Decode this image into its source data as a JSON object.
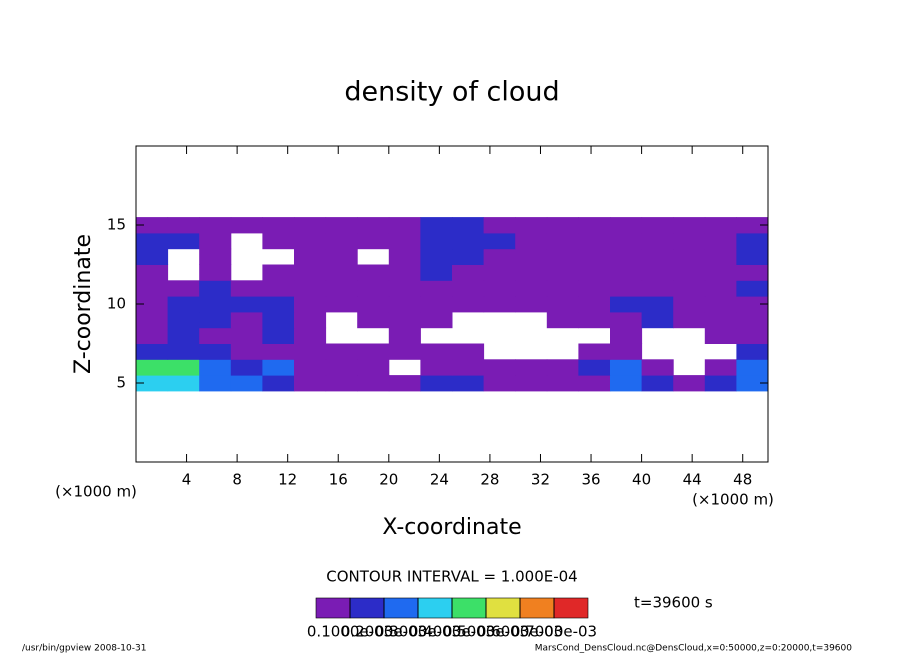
{
  "chart_data": {
    "type": "heatmap",
    "title": "density of cloud",
    "x_label": "X-coordinate",
    "y_label": "Z-coordinate",
    "x_unit": "(×1000 m)",
    "y_unit": "(×1000 m)",
    "xlim": [
      0,
      50
    ],
    "ylim": [
      0,
      20
    ],
    "xticks": [
      4,
      8,
      12,
      16,
      20,
      24,
      28,
      32,
      36,
      40,
      44,
      48
    ],
    "yticks": [
      5,
      10,
      15
    ],
    "x": [
      1.25,
      3.75,
      6.25,
      8.75,
      11.25,
      13.75,
      16.25,
      18.75,
      21.25,
      23.75,
      26.25,
      28.75,
      31.25,
      33.75,
      36.25,
      38.75,
      41.25,
      43.75,
      46.25,
      48.75
    ],
    "y": [
      5,
      6,
      7,
      8,
      9,
      10,
      11,
      12,
      13,
      14,
      15
    ],
    "values": [
      [
        0.00035,
        0.00035,
        0.00025,
        0.00025,
        0.00015,
        5e-05,
        5e-05,
        5e-05,
        5e-05,
        0.00015,
        0.00015,
        5e-05,
        5e-05,
        5e-05,
        5e-05,
        0.00025,
        0.00015,
        5e-05,
        0.00015,
        0.00025
      ],
      [
        0.00045,
        0.00045,
        0.00025,
        0.00015,
        0.00025,
        5e-05,
        5e-05,
        5e-05,
        null,
        5e-05,
        5e-05,
        5e-05,
        5e-05,
        5e-05,
        0.00015,
        0.00025,
        5e-05,
        null,
        5e-05,
        0.00025
      ],
      [
        0.00015,
        0.00015,
        0.00015,
        5e-05,
        5e-05,
        5e-05,
        5e-05,
        5e-05,
        5e-05,
        5e-05,
        5e-05,
        null,
        null,
        null,
        5e-05,
        5e-05,
        null,
        null,
        null,
        0.00015
      ],
      [
        5e-05,
        0.00015,
        5e-05,
        5e-05,
        0.00015,
        5e-05,
        null,
        null,
        5e-05,
        null,
        null,
        null,
        null,
        null,
        null,
        5e-05,
        null,
        null,
        5e-05,
        5e-05
      ],
      [
        5e-05,
        0.00015,
        0.00015,
        5e-05,
        0.00015,
        5e-05,
        null,
        5e-05,
        5e-05,
        5e-05,
        null,
        null,
        null,
        5e-05,
        5e-05,
        5e-05,
        0.00015,
        5e-05,
        5e-05,
        5e-05
      ],
      [
        5e-05,
        0.00015,
        0.00015,
        0.00015,
        0.00015,
        5e-05,
        5e-05,
        5e-05,
        5e-05,
        5e-05,
        5e-05,
        5e-05,
        5e-05,
        5e-05,
        5e-05,
        0.00015,
        0.00015,
        5e-05,
        5e-05,
        5e-05
      ],
      [
        5e-05,
        5e-05,
        0.00015,
        5e-05,
        5e-05,
        5e-05,
        5e-05,
        5e-05,
        5e-05,
        5e-05,
        5e-05,
        5e-05,
        5e-05,
        5e-05,
        5e-05,
        5e-05,
        5e-05,
        5e-05,
        5e-05,
        0.00015
      ],
      [
        5e-05,
        null,
        5e-05,
        null,
        5e-05,
        5e-05,
        5e-05,
        5e-05,
        5e-05,
        0.00015,
        5e-05,
        5e-05,
        5e-05,
        5e-05,
        5e-05,
        5e-05,
        5e-05,
        5e-05,
        5e-05,
        5e-05
      ],
      [
        0.00015,
        null,
        5e-05,
        null,
        null,
        5e-05,
        5e-05,
        null,
        5e-05,
        0.00015,
        0.00015,
        5e-05,
        5e-05,
        5e-05,
        5e-05,
        5e-05,
        5e-05,
        5e-05,
        5e-05,
        0.00015
      ],
      [
        0.00015,
        0.00015,
        5e-05,
        null,
        5e-05,
        5e-05,
        5e-05,
        5e-05,
        5e-05,
        0.00015,
        0.00015,
        0.00015,
        5e-05,
        5e-05,
        5e-05,
        5e-05,
        5e-05,
        5e-05,
        5e-05,
        0.00015
      ],
      [
        5e-05,
        5e-05,
        5e-05,
        5e-05,
        5e-05,
        5e-05,
        5e-05,
        5e-05,
        5e-05,
        0.00015,
        0.00015,
        5e-05,
        5e-05,
        5e-05,
        5e-05,
        5e-05,
        5e-05,
        5e-05,
        5e-05,
        5e-05
      ]
    ],
    "colorbar": {
      "lim": [
        0,
        0.0008
      ],
      "colors": [
        "#7a1cb4",
        "#2c2cc8",
        "#1f6af0",
        "#2ccff0",
        "#3ce068",
        "#e0e040",
        "#f08020",
        "#e02828"
      ],
      "ticks": [
        {
          "value": 0.0001,
          "label": "0.1000e-03"
        },
        {
          "value": 0.0002,
          "label": "0.2000e-03"
        },
        {
          "value": 0.0003,
          "label": "0.3000e-03"
        },
        {
          "value": 0.0004,
          "label": "0.4000e-03"
        },
        {
          "value": 0.0005,
          "label": "0.5000e-03"
        },
        {
          "value": 0.0006,
          "label": "0.6000e-03"
        },
        {
          "value": 0.0007,
          "label": "0.7000e-03"
        }
      ]
    },
    "contour_interval": "CONTOUR INTERVAL = 1.000E-04",
    "time_label": "t=39600 s",
    "footer_left": "/usr/bin/gpview   2008-10-31",
    "footer_right": "MarsCond_DensCloud.nc@DensCloud,x=0:50000,z=0:20000,t=39600"
  }
}
